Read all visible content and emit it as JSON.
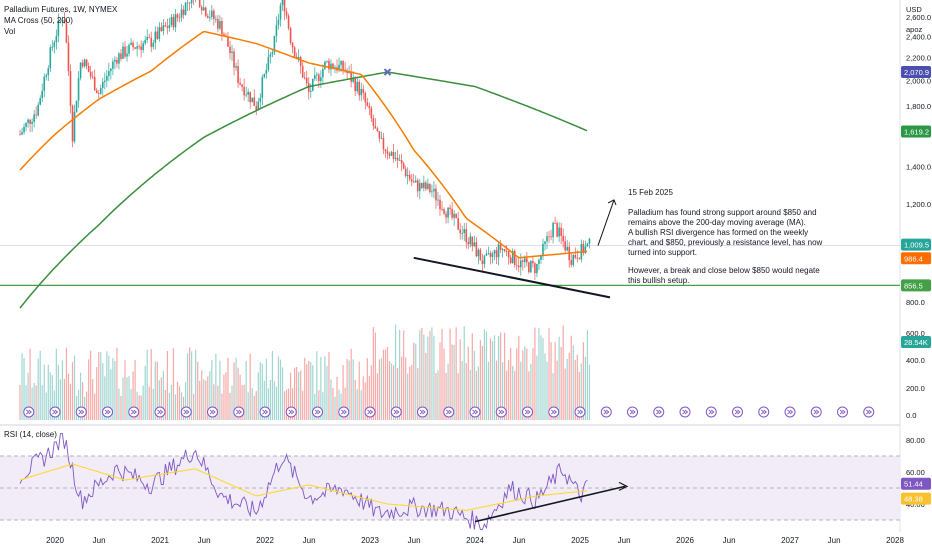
{
  "chart_data": {
    "type": "candlestick",
    "title": "Palladium Futures, 1W, NYMEX",
    "indicator_labels": [
      "MA Cross (50, 200)",
      "Vol"
    ],
    "currency": "USD",
    "scale_mode": "apoz",
    "x_axis": {
      "ticks": [
        "2020",
        "Jun",
        "2021",
        "Jun",
        "2022",
        "Jun",
        "2023",
        "Jun",
        "2024",
        "Jun",
        "2025",
        "Jun",
        "2026",
        "Jun",
        "2027",
        "Jun",
        "2028"
      ]
    },
    "price_axis": {
      "ticks": [
        2600,
        2400,
        2200,
        2000,
        1800,
        1400,
        1200,
        800
      ],
      "tick_labels": [
        "2,600.0",
        "2,400.0",
        "2,200.0",
        "2,000.0",
        "1,800.0",
        "1,400.0",
        "1,200.0",
        "800.0"
      ],
      "ylim": [
        780,
        2790
      ]
    },
    "price_badges": [
      {
        "value": "2,070.9",
        "color": "#4a4fb0"
      },
      {
        "value": "1,619.2",
        "color": "#2b9846"
      },
      {
        "value": "1,009.5",
        "color": "#26a69a"
      },
      {
        "value": "986.4",
        "color": "#ff6d00"
      },
      {
        "value": "856.5",
        "color": "#43a047"
      }
    ],
    "close_series": [
      {
        "date": "2019-09",
        "value": 1600
      },
      {
        "date": "2019-11",
        "value": 1780
      },
      {
        "date": "2020-01",
        "value": 2400
      },
      {
        "date": "2020-02",
        "value": 2650
      },
      {
        "date": "2020-03",
        "value": 1600
      },
      {
        "date": "2020-04",
        "value": 2200
      },
      {
        "date": "2020-06",
        "value": 1900
      },
      {
        "date": "2020-08",
        "value": 2200
      },
      {
        "date": "2020-10",
        "value": 2300
      },
      {
        "date": "2020-12",
        "value": 2350
      },
      {
        "date": "2021-03",
        "value": 2600
      },
      {
        "date": "2021-05",
        "value": 2900
      },
      {
        "date": "2021-06",
        "value": 2700
      },
      {
        "date": "2021-08",
        "value": 2500
      },
      {
        "date": "2021-10",
        "value": 2000
      },
      {
        "date": "2021-12",
        "value": 1800
      },
      {
        "date": "2022-02",
        "value": 2300
      },
      {
        "date": "2022-03",
        "value": 2850
      },
      {
        "date": "2022-04",
        "value": 2350
      },
      {
        "date": "2022-06",
        "value": 1900
      },
      {
        "date": "2022-08",
        "value": 2150
      },
      {
        "date": "2022-10",
        "value": 2100
      },
      {
        "date": "2022-12",
        "value": 1900
      },
      {
        "date": "2023-02",
        "value": 1550
      },
      {
        "date": "2023-04",
        "value": 1450
      },
      {
        "date": "2023-06",
        "value": 1300
      },
      {
        "date": "2023-08",
        "value": 1270
      },
      {
        "date": "2023-10",
        "value": 1150
      },
      {
        "date": "2023-12",
        "value": 1050
      },
      {
        "date": "2024-02",
        "value": 940
      },
      {
        "date": "2024-04",
        "value": 1000
      },
      {
        "date": "2024-06",
        "value": 940
      },
      {
        "date": "2024-08",
        "value": 920
      },
      {
        "date": "2024-10",
        "value": 1100
      },
      {
        "date": "2024-12",
        "value": 960
      },
      {
        "date": "2025-02",
        "value": 1009.5
      }
    ],
    "ma50": [
      {
        "date": "2019-09",
        "value": 1380
      },
      {
        "date": "2020-01",
        "value": 1600
      },
      {
        "date": "2020-06",
        "value": 1850
      },
      {
        "date": "2020-12",
        "value": 2080
      },
      {
        "date": "2021-06",
        "value": 2450
      },
      {
        "date": "2021-12",
        "value": 2330
      },
      {
        "date": "2022-06",
        "value": 2150
      },
      {
        "date": "2022-12",
        "value": 2050
      },
      {
        "date": "2023-06",
        "value": 1500
      },
      {
        "date": "2023-12",
        "value": 1130
      },
      {
        "date": "2024-06",
        "value": 960
      },
      {
        "date": "2025-02",
        "value": 986.4
      }
    ],
    "ma200": [
      {
        "date": "2019-09",
        "value": 780
      },
      {
        "date": "2020-06",
        "value": 1100
      },
      {
        "date": "2021-06",
        "value": 1580
      },
      {
        "date": "2022-06",
        "value": 1950
      },
      {
        "date": "2023-03",
        "value": 2070.9
      },
      {
        "date": "2024-01",
        "value": 1950
      },
      {
        "date": "2025-02",
        "value": 1619.2
      }
    ],
    "support_level": 856.5,
    "volume": {
      "ticks": [
        "600.0",
        "400.0",
        "200.0",
        "0.0"
      ],
      "last": "28.54K"
    },
    "rsi": {
      "label": "RSI (14, close)",
      "ticks": [
        "80.00",
        "60.00",
        "40.00"
      ],
      "band": [
        30,
        70
      ],
      "badges": [
        {
          "value": "51.44",
          "color": "#7e57c2"
        },
        {
          "value": "48.38",
          "color": "#fbc02d"
        }
      ],
      "series": [
        {
          "date": "2019-09",
          "value": 58
        },
        {
          "date": "2019-12",
          "value": 70
        },
        {
          "date": "2020-02",
          "value": 82
        },
        {
          "date": "2020-04",
          "value": 42
        },
        {
          "date": "2020-08",
          "value": 62
        },
        {
          "date": "2020-12",
          "value": 52
        },
        {
          "date": "2021-05",
          "value": 74
        },
        {
          "date": "2021-08",
          "value": 45
        },
        {
          "date": "2021-12",
          "value": 35
        },
        {
          "date": "2022-03",
          "value": 70
        },
        {
          "date": "2022-06",
          "value": 44
        },
        {
          "date": "2022-10",
          "value": 50
        },
        {
          "date": "2023-02",
          "value": 34
        },
        {
          "date": "2023-06",
          "value": 38
        },
        {
          "date": "2023-10",
          "value": 36
        },
        {
          "date": "2024-02",
          "value": 27
        },
        {
          "date": "2024-05",
          "value": 50
        },
        {
          "date": "2024-08",
          "value": 42
        },
        {
          "date": "2024-11",
          "value": 62
        },
        {
          "date": "2025-01",
          "value": 45
        },
        {
          "date": "2025-02",
          "value": 51.44
        }
      ],
      "ma": [
        {
          "date": "2019-09",
          "value": 55
        },
        {
          "date": "2020-03",
          "value": 65
        },
        {
          "date": "2020-09",
          "value": 55
        },
        {
          "date": "2021-05",
          "value": 62
        },
        {
          "date": "2021-12",
          "value": 45
        },
        {
          "date": "2022-06",
          "value": 52
        },
        {
          "date": "2023-03",
          "value": 40
        },
        {
          "date": "2023-12",
          "value": 36
        },
        {
          "date": "2024-08",
          "value": 45
        },
        {
          "date": "2025-02",
          "value": 48.38
        }
      ]
    }
  },
  "annotation": {
    "date": "15 Feb 2025",
    "paragraph1": "Palladium has found strong support around $850 and remains above the 200-day moving average (MA).\nA bullish RSI divergence has formed on the weekly chart, and $850, previously a resistance level, has now turned into support.",
    "paragraph2": "However, a break and close below $850 would negate this bullish setup."
  }
}
